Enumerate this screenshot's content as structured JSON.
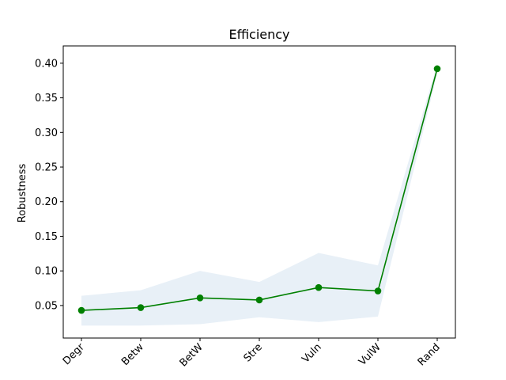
{
  "chart_data": {
    "type": "line",
    "title": "Efficiency",
    "xlabel": "",
    "ylabel": "Robustness",
    "categories": [
      "Degr",
      "Betw",
      "BetW",
      "Stre",
      "Vuln",
      "VulW",
      "Rand"
    ],
    "series": [
      {
        "values": [
          0.043,
          0.047,
          0.061,
          0.058,
          0.076,
          0.071,
          0.392
        ],
        "lower": [
          0.021,
          0.021,
          0.023,
          0.033,
          0.026,
          0.034,
          0.385
        ],
        "upper": [
          0.064,
          0.072,
          0.1,
          0.084,
          0.126,
          0.108,
          0.399
        ],
        "color": "#008000",
        "band_color": "#e8f0f7"
      }
    ],
    "yticks": [
      "0.05",
      "0.10",
      "0.15",
      "0.20",
      "0.25",
      "0.30",
      "0.35",
      "0.40"
    ],
    "ylim": [
      0.003,
      0.425
    ],
    "grid": false,
    "legend": "none"
  }
}
